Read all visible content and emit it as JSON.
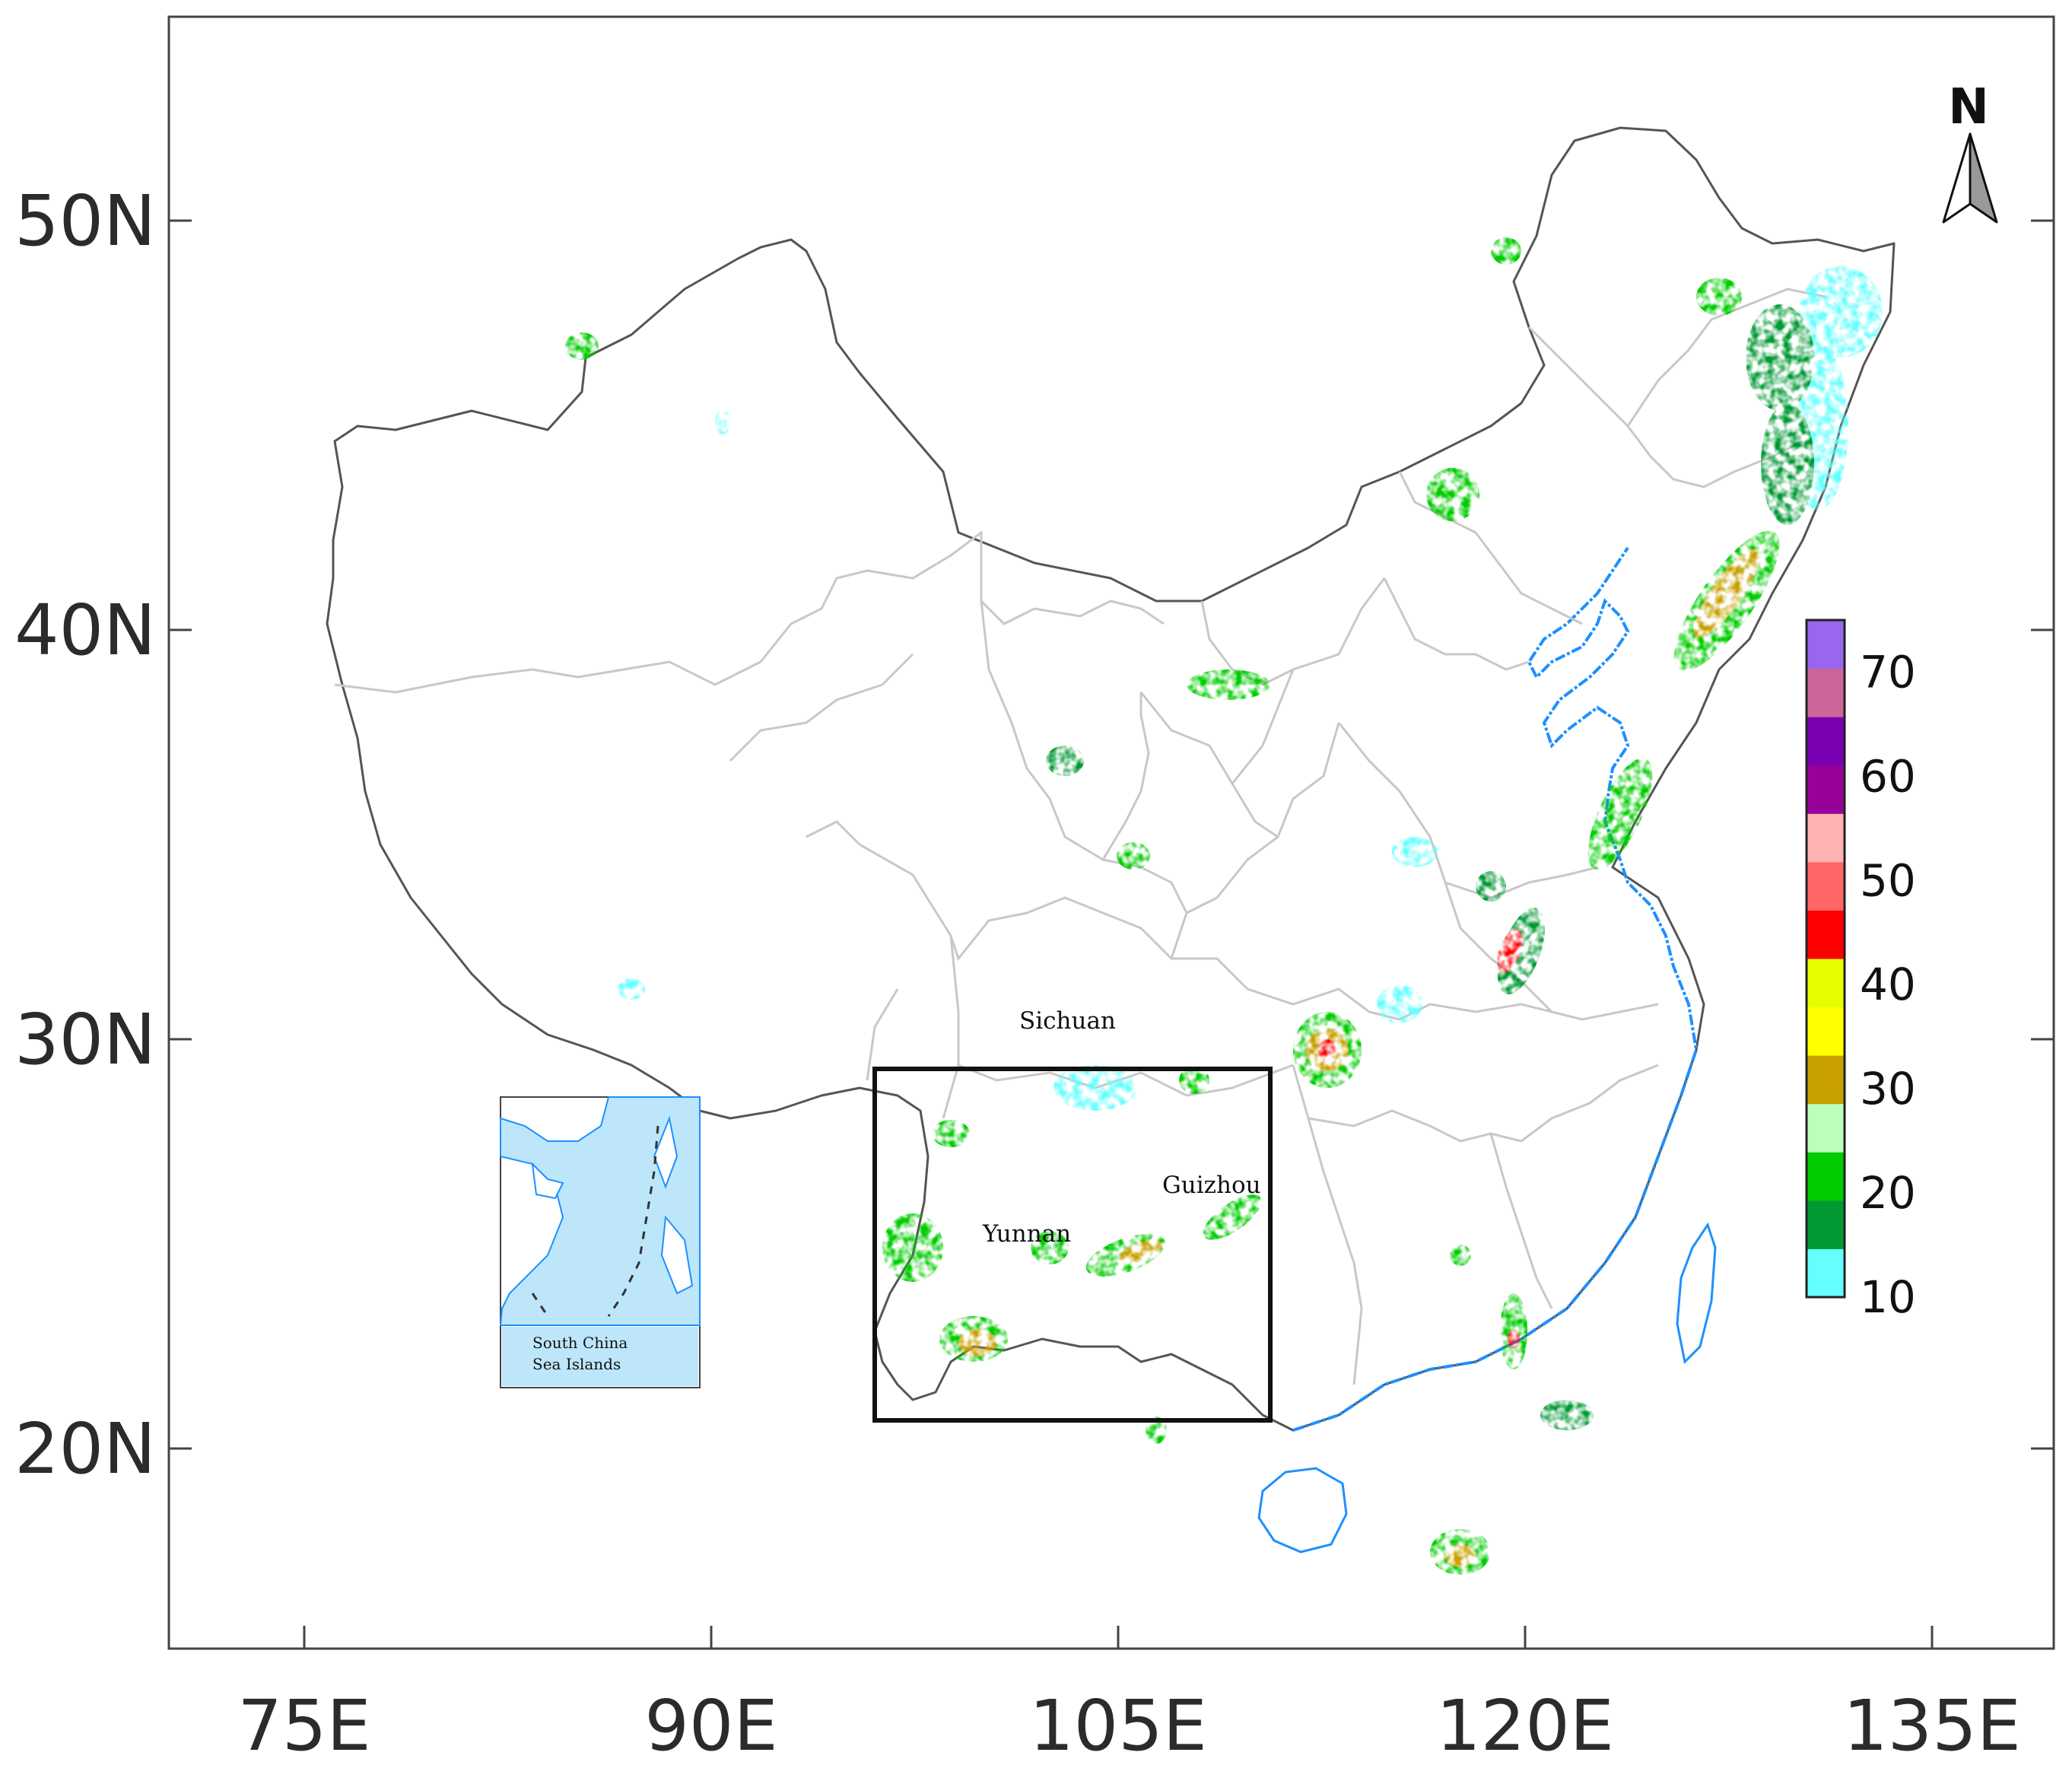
{
  "x_axis": {
    "ticks": [
      "75E",
      "90E",
      "105E",
      "120E",
      "135E"
    ],
    "values": [
      75,
      90,
      105,
      120,
      135
    ]
  },
  "y_axis": {
    "ticks": [
      "50N",
      "40N",
      "30N",
      "20N"
    ],
    "values": [
      50,
      40,
      30,
      20
    ]
  },
  "extent": {
    "lon": [
      70,
      140
    ],
    "lat": [
      15,
      55
    ]
  },
  "north_arrow": {
    "label": "N",
    "icon": "north-arrow-icon"
  },
  "colorbar": {
    "labels": [
      "70",
      "60",
      "50",
      "40",
      "30",
      "20",
      "10"
    ],
    "label_values": [
      70,
      60,
      50,
      40,
      30,
      20,
      10
    ],
    "min": 10,
    "max": 75,
    "colors": [
      "#66ffff",
      "#009933",
      "#00cc00",
      "#bbffbb",
      "#c8a000",
      "#ffff00",
      "#e6ff00",
      "#ff0000",
      "#ff6666",
      "#ffb3b3",
      "#990099",
      "#7a00b3",
      "#cc6699",
      "#9966ee"
    ]
  },
  "regions": {
    "sichuan": "Sichuan",
    "guizhou": "Guizhou",
    "yunnan": "Yunnan"
  },
  "study_area": {
    "lon": [
      97.5,
      111.5
    ],
    "lat": [
      21,
      29.5
    ]
  },
  "inset": {
    "title_line1": "South China",
    "title_line2": "Sea Islands"
  },
  "colors": {
    "water": "#1e90ff",
    "sea_fill": "#bde6fb",
    "province_border": "#c8c8c8",
    "country_border": "#555555"
  }
}
